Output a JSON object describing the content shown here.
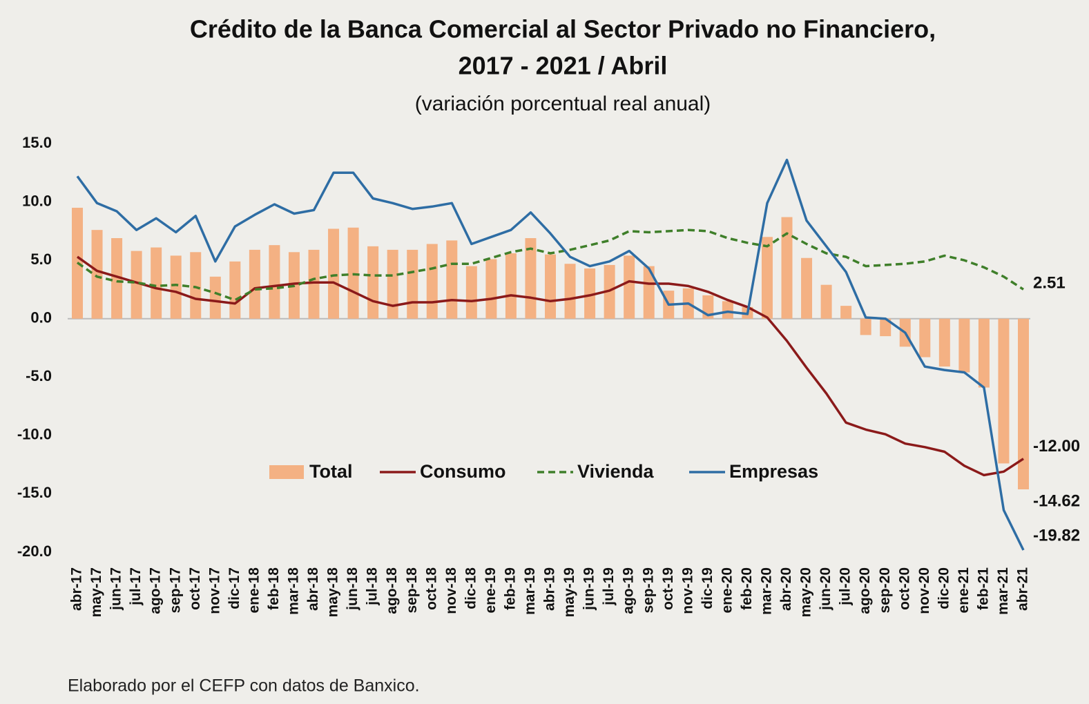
{
  "chart_data": {
    "type": "combo",
    "title": "Crédito de la Banca Comercial al Sector Privado no Financiero,",
    "title_line2": "2017 - 2021 / Abril",
    "subtitle": "(variación porcentual real anual)",
    "source": "Elaborado por el CEFP con datos de Banxico.",
    "categories": [
      "abr-17",
      "may-17",
      "jun-17",
      "jul-17",
      "ago-17",
      "sep-17",
      "oct-17",
      "nov-17",
      "dic-17",
      "ene-18",
      "feb-18",
      "mar-18",
      "abr-18",
      "may-18",
      "jun-18",
      "jul-18",
      "ago-18",
      "sep-18",
      "oct-18",
      "nov-18",
      "dic-18",
      "ene-19",
      "feb-19",
      "mar-19",
      "abr-19",
      "may-19",
      "jun-19",
      "jul-19",
      "ago-19",
      "sep-19",
      "oct-19",
      "nov-19",
      "dic-19",
      "ene-20",
      "feb-20",
      "mar-20",
      "abr-20",
      "may-20",
      "jun-20",
      "jul-20",
      "ago-20",
      "sep-20",
      "oct-20",
      "nov-20",
      "dic-20",
      "ene-21",
      "feb-21",
      "mar-21",
      "abr-21"
    ],
    "ylim": [
      -20,
      15
    ],
    "yticks": [
      {
        "value": -20,
        "label": "-20.0"
      },
      {
        "value": -15,
        "label": "-15.0"
      },
      {
        "value": -10,
        "label": "-10.0"
      },
      {
        "value": -5,
        "label": "-5.0"
      },
      {
        "value": 0,
        "label": "0.0"
      },
      {
        "value": 5,
        "label": "5.0"
      },
      {
        "value": 10,
        "label": "10.0"
      },
      {
        "value": 15,
        "label": "15.0"
      }
    ],
    "series": [
      {
        "name": "Total",
        "type": "bar",
        "color": "#f4b183",
        "label_color": "#c55a11",
        "values": [
          9.5,
          7.6,
          6.9,
          5.8,
          6.1,
          5.4,
          5.7,
          3.6,
          4.9,
          5.9,
          6.3,
          5.7,
          5.9,
          7.7,
          7.8,
          6.2,
          5.9,
          5.9,
          6.4,
          6.7,
          4.5,
          5.1,
          5.6,
          6.9,
          5.5,
          4.7,
          4.3,
          4.6,
          5.4,
          4.5,
          2.4,
          2.6,
          2.0,
          1.5,
          1.0,
          7.0,
          8.7,
          5.2,
          2.9,
          1.1,
          -1.4,
          -1.5,
          -2.4,
          -3.3,
          -4.1,
          -4.6,
          -5.9,
          -12.4,
          -14.62
        ],
        "value_labels": [
          null,
          null,
          null,
          null,
          null,
          null,
          null,
          null,
          null,
          null,
          null,
          null,
          null,
          null,
          null,
          null,
          null,
          null,
          null,
          null,
          null,
          null,
          null,
          null,
          null,
          null,
          null,
          null,
          null,
          null,
          null,
          null,
          null,
          null,
          null,
          null,
          null,
          null,
          null,
          null,
          null,
          null,
          null,
          null,
          null,
          null,
          null,
          null,
          "-14.62"
        ]
      },
      {
        "name": "Consumo",
        "type": "line",
        "color": "#8b1a1a",
        "dashed": false,
        "label_color": "#8b1a1a",
        "values": [
          5.3,
          4.1,
          3.6,
          3.1,
          2.6,
          2.3,
          1.7,
          1.5,
          1.3,
          2.6,
          2.8,
          3.0,
          3.1,
          3.1,
          2.3,
          1.5,
          1.1,
          1.4,
          1.4,
          1.6,
          1.5,
          1.7,
          2.0,
          1.8,
          1.5,
          1.7,
          2.0,
          2.4,
          3.2,
          3.0,
          3.0,
          2.8,
          2.3,
          1.6,
          1.0,
          0.1,
          -1.9,
          -4.2,
          -6.4,
          -8.9,
          -9.5,
          -9.9,
          -10.7,
          -11.0,
          -11.4,
          -12.6,
          -13.4,
          -13.1,
          -12.0
        ],
        "value_labels": [
          null,
          null,
          null,
          null,
          null,
          null,
          null,
          null,
          null,
          null,
          null,
          null,
          null,
          null,
          null,
          null,
          null,
          null,
          null,
          null,
          null,
          null,
          null,
          null,
          null,
          null,
          null,
          null,
          null,
          null,
          null,
          null,
          null,
          null,
          null,
          null,
          null,
          null,
          null,
          null,
          null,
          null,
          null,
          null,
          null,
          null,
          null,
          null,
          "-12.00"
        ]
      },
      {
        "name": "Vivienda",
        "type": "line",
        "color": "#3f7f2a",
        "dashed": true,
        "label_color": "#3f7f2a",
        "values": [
          4.8,
          3.6,
          3.2,
          3.1,
          2.8,
          2.9,
          2.7,
          2.2,
          1.6,
          2.5,
          2.6,
          2.8,
          3.4,
          3.7,
          3.8,
          3.7,
          3.7,
          4.0,
          4.3,
          4.7,
          4.7,
          5.2,
          5.7,
          6.0,
          5.6,
          5.9,
          6.3,
          6.7,
          7.5,
          7.4,
          7.5,
          7.6,
          7.5,
          6.9,
          6.5,
          6.2,
          7.3,
          6.4,
          5.6,
          5.3,
          4.5,
          4.6,
          4.7,
          4.9,
          5.4,
          5.0,
          4.4,
          3.6,
          2.51
        ],
        "value_labels": [
          null,
          null,
          null,
          null,
          null,
          null,
          null,
          null,
          null,
          null,
          null,
          null,
          null,
          null,
          null,
          null,
          null,
          null,
          null,
          null,
          null,
          null,
          null,
          null,
          null,
          null,
          null,
          null,
          null,
          null,
          null,
          null,
          null,
          null,
          null,
          null,
          null,
          null,
          null,
          null,
          null,
          null,
          null,
          null,
          null,
          null,
          null,
          null,
          "2.51"
        ]
      },
      {
        "name": "Empresas",
        "type": "line",
        "color": "#2e6da4",
        "dashed": false,
        "label_color": "#2e6da4",
        "values": [
          12.2,
          9.9,
          9.2,
          7.6,
          8.6,
          7.4,
          8.8,
          4.9,
          7.9,
          8.9,
          9.8,
          9.0,
          9.3,
          12.5,
          12.5,
          10.3,
          9.9,
          9.4,
          9.6,
          9.9,
          6.4,
          7.0,
          7.6,
          9.1,
          7.3,
          5.3,
          4.5,
          4.9,
          5.8,
          4.3,
          1.2,
          1.3,
          0.3,
          0.6,
          0.4,
          9.9,
          13.6,
          8.4,
          6.2,
          4.0,
          0.1,
          0.0,
          -1.2,
          -4.1,
          -4.4,
          -4.6,
          -5.9,
          -16.4,
          -19.82
        ],
        "value_labels": [
          null,
          null,
          null,
          null,
          null,
          null,
          null,
          null,
          null,
          null,
          null,
          null,
          null,
          null,
          null,
          null,
          null,
          null,
          null,
          null,
          null,
          null,
          null,
          null,
          null,
          null,
          null,
          null,
          null,
          null,
          null,
          null,
          null,
          null,
          null,
          null,
          null,
          null,
          null,
          null,
          null,
          null,
          null,
          null,
          null,
          null,
          null,
          null,
          "-19.82"
        ]
      }
    ]
  }
}
